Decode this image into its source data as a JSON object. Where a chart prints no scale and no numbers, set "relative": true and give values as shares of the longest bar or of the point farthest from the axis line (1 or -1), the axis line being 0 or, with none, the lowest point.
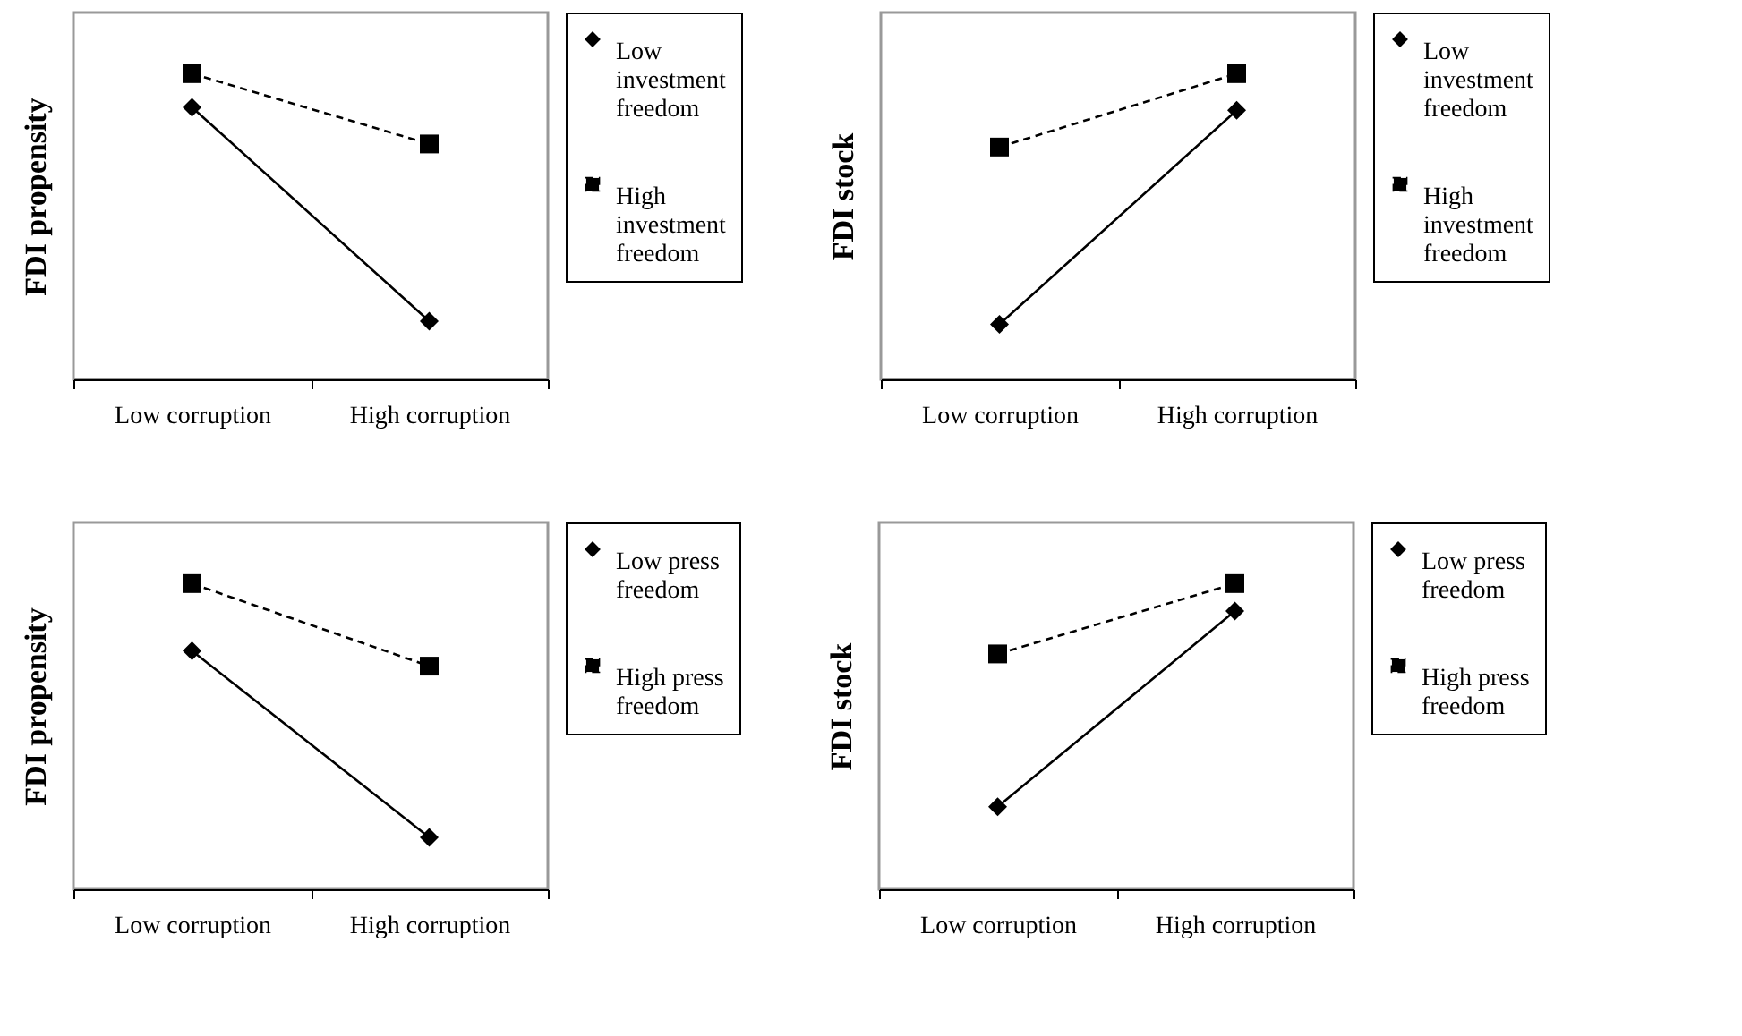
{
  "chart_data": [
    {
      "type": "line",
      "ylabel": "FDI propensity",
      "categories": [
        "Low corruption",
        "High corruption"
      ],
      "relative": true,
      "legend": "right",
      "series": [
        {
          "name": "Low investment freedom",
          "color": "#000000",
          "marker": "diamond",
          "line_style": "solid",
          "values": [
            0.89,
            0.19
          ]
        },
        {
          "name": "High investment freedom",
          "color": "#000000",
          "marker": "square",
          "line_style": "dashed",
          "values": [
            1,
            0.77
          ]
        }
      ]
    },
    {
      "type": "line",
      "ylabel": "FDI stock",
      "categories": [
        "Low corruption",
        "High corruption"
      ],
      "relative": true,
      "legend": "right",
      "series": [
        {
          "name": "Low investment freedom",
          "color": "#000000",
          "marker": "diamond",
          "line_style": "solid",
          "values": [
            0.18,
            0.88
          ]
        },
        {
          "name": "High investment freedom",
          "color": "#000000",
          "marker": "square",
          "line_style": "dashed",
          "values": [
            0.76,
            1
          ]
        }
      ]
    },
    {
      "type": "line",
      "ylabel": "FDI propensity",
      "categories": [
        "Low corruption",
        "High corruption"
      ],
      "relative": true,
      "legend": "right",
      "series": [
        {
          "name": "Low press freedom",
          "color": "#000000",
          "marker": "diamond",
          "line_style": "solid",
          "values": [
            0.78,
            0.17
          ]
        },
        {
          "name": "High press freedom",
          "color": "#000000",
          "marker": "square",
          "line_style": "dashed",
          "values": [
            1,
            0.73
          ]
        }
      ]
    },
    {
      "type": "line",
      "ylabel": "FDI stock",
      "categories": [
        "Low corruption",
        "High corruption"
      ],
      "relative": true,
      "legend": "right",
      "series": [
        {
          "name": "Low press freedom",
          "color": "#000000",
          "marker": "diamond",
          "line_style": "solid",
          "values": [
            0.27,
            0.91
          ]
        },
        {
          "name": "High press freedom",
          "color": "#000000",
          "marker": "square",
          "line_style": "dashed",
          "values": [
            0.77,
            1
          ]
        }
      ]
    }
  ]
}
